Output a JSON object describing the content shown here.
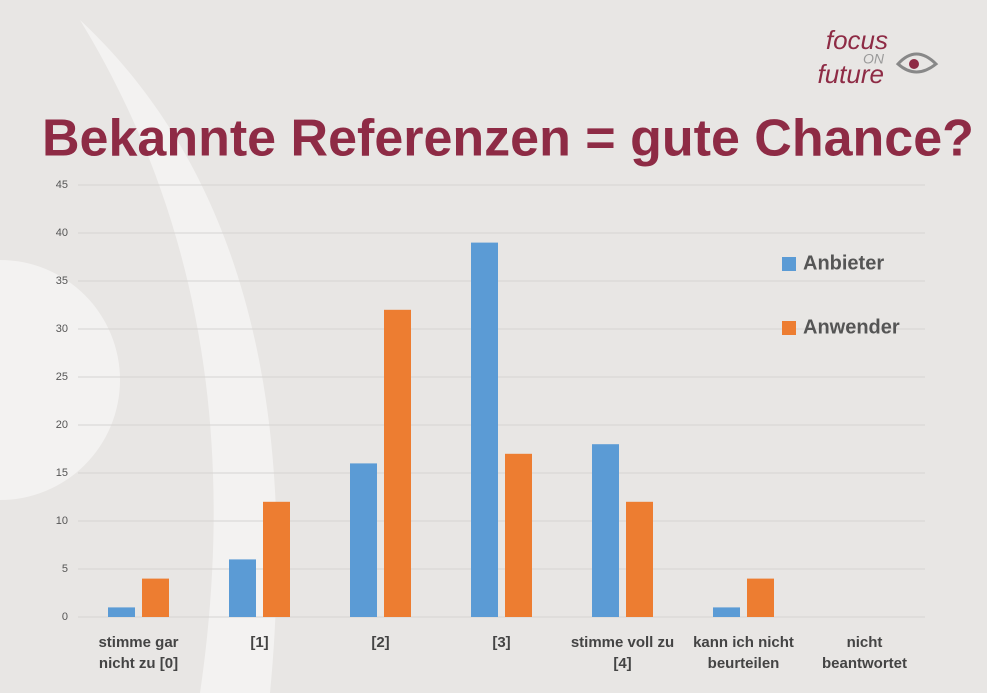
{
  "logo": {
    "line1": "focus",
    "line2": "ON",
    "line3": "future"
  },
  "chart_data": {
    "type": "bar",
    "title": "Bekannte Referenzen = gute Chance?",
    "categories": [
      "stimme gar nicht zu [0]",
      "[1]",
      "[2]",
      "[3]",
      "stimme voll zu [4]",
      "kann ich nicht beurteilen",
      "nicht beantwortet"
    ],
    "series": [
      {
        "name": "Anbieter",
        "color": "#5b9bd5",
        "values": [
          1,
          6,
          16,
          39,
          18,
          1,
          0
        ]
      },
      {
        "name": "Anwender",
        "color": "#ed7d31",
        "values": [
          4,
          12,
          32,
          17,
          12,
          4,
          0
        ]
      }
    ],
    "ylim": [
      0,
      45
    ],
    "yticks": [
      0,
      5,
      10,
      15,
      20,
      25,
      30,
      35,
      40,
      45
    ],
    "grid": true,
    "legend": "right"
  }
}
